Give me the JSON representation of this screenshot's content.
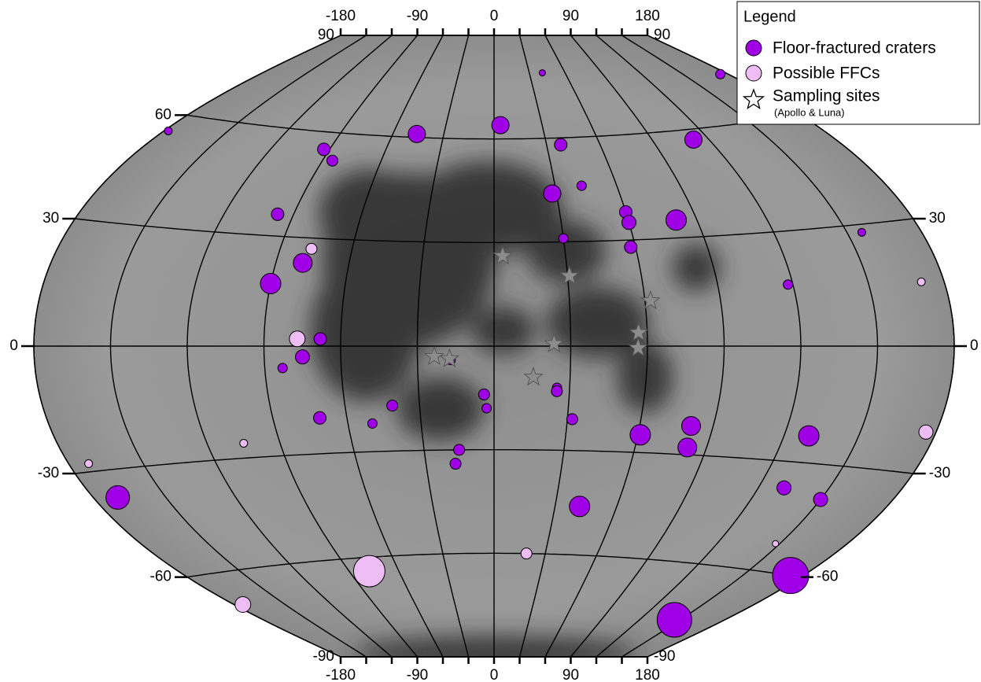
{
  "map": {
    "lon_ticks": [
      -180,
      -150,
      -120,
      -90,
      -60,
      -30,
      0,
      30,
      60,
      90,
      120,
      150,
      180
    ],
    "lon_labels": [
      -180,
      -90,
      0,
      90,
      180
    ],
    "parallels": [
      60,
      30,
      0,
      -30,
      -60
    ],
    "lat_labels_left": [
      90,
      60,
      30,
      0,
      -30,
      -60,
      -90
    ],
    "lat_labels_right": [
      90,
      30,
      0,
      -30,
      -60,
      -90
    ],
    "legend": {
      "title": "Legend",
      "items": [
        {
          "label": "Floor-fractured craters",
          "color": "#a000e6"
        },
        {
          "label": "Possible FFCs",
          "color": "#efbdf5"
        },
        {
          "label": "Sampling sites",
          "note": "(Apollo & Luna)",
          "color": "#8c8c8c"
        }
      ]
    },
    "craters": [
      {
        "lon": 4,
        "lat": 64,
        "diameter_km": 165,
        "type": "ffc"
      },
      {
        "lon": -46,
        "lat": 61,
        "diameter_km": 165,
        "type": "ffc"
      },
      {
        "lon": 38,
        "lat": 58,
        "diameter_km": 120,
        "type": "ffc"
      },
      {
        "lon": 112,
        "lat": 57,
        "diameter_km": 165,
        "type": "ffc"
      },
      {
        "lon": -178,
        "lat": 55,
        "diameter_km": 75,
        "type": "ffc"
      },
      {
        "lon": 28,
        "lat": 44,
        "diameter_km": 165,
        "type": "ffc"
      },
      {
        "lon": 81,
        "lat": 35,
        "diameter_km": 195,
        "type": "ffc"
      },
      {
        "lon": 60,
        "lat": 38,
        "diameter_km": 120,
        "type": "ffc"
      },
      {
        "lon": 60,
        "lat": 35,
        "diameter_km": 135,
        "type": "ffc"
      },
      {
        "lon": 43,
        "lat": 46,
        "diameter_km": 90,
        "type": "ffc"
      },
      {
        "lon": 30,
        "lat": 31,
        "diameter_km": 90,
        "type": "ffc"
      },
      {
        "lon": 58,
        "lat": 28,
        "diameter_km": 120,
        "type": "ffc"
      },
      {
        "lon": -79,
        "lat": 23,
        "diameter_km": 180,
        "type": "ffc"
      },
      {
        "lon": -90,
        "lat": 17,
        "diameter_km": 195,
        "type": "ffc"
      },
      {
        "lon": -97,
        "lat": 36,
        "diameter_km": 120,
        "type": "ffc"
      },
      {
        "lon": -93,
        "lat": 55,
        "diameter_km": 120,
        "type": "ffc"
      },
      {
        "lon": -85,
        "lat": 52,
        "diameter_km": 105,
        "type": "ffc"
      },
      {
        "lon": -68,
        "lat": 2,
        "diameter_km": 120,
        "type": "ffc"
      },
      {
        "lon": -75,
        "lat": -3,
        "diameter_km": 135,
        "type": "ffc"
      },
      {
        "lon": -83,
        "lat": -6,
        "diameter_km": 90,
        "type": "ffc"
      },
      {
        "lon": -71,
        "lat": -20,
        "diameter_km": 120,
        "type": "ffc"
      },
      {
        "lon": -50,
        "lat": -22,
        "diameter_km": 90,
        "type": "ffc"
      },
      {
        "lon": -41,
        "lat": -17,
        "diameter_km": 105,
        "type": "ffc"
      },
      {
        "lon": -4,
        "lat": -14,
        "diameter_km": 105,
        "type": "ffc"
      },
      {
        "lon": -3,
        "lat": -18,
        "diameter_km": 90,
        "type": "ffc"
      },
      {
        "lon": 25,
        "lat": -12,
        "diameter_km": 90,
        "type": "ffc"
      },
      {
        "lon": 32,
        "lat": -21,
        "diameter_km": 105,
        "type": "ffc"
      },
      {
        "lon": 61,
        "lat": -25,
        "diameter_km": 195,
        "type": "ffc"
      },
      {
        "lon": 81,
        "lat": -22,
        "diameter_km": 180,
        "type": "ffc"
      },
      {
        "lon": 82,
        "lat": -28,
        "diameter_km": 180,
        "type": "ffc"
      },
      {
        "lon": 130,
        "lat": -23,
        "diameter_km": 195,
        "type": "ffc"
      },
      {
        "lon": 42,
        "lat": -46,
        "diameter_km": 195,
        "type": "ffc"
      },
      {
        "lon": 131,
        "lat": -37,
        "diameter_km": 135,
        "type": "ffc"
      },
      {
        "lon": 150,
        "lat": -39,
        "diameter_km": 135,
        "type": "ffc"
      },
      {
        "lon": -170,
        "lat": -37,
        "diameter_km": 225,
        "type": "ffc"
      },
      {
        "lon": 146,
        "lat": -77,
        "diameter_km": 330,
        "type": "ffc"
      },
      {
        "lon": 174,
        "lat": -60,
        "diameter_km": 345,
        "type": "ffc"
      },
      {
        "lon": -17,
        "lat": -34,
        "diameter_km": 105,
        "type": "ffc"
      },
      {
        "lon": -15,
        "lat": -30,
        "diameter_km": 105,
        "type": "ffc"
      },
      {
        "lon": 175,
        "lat": 75,
        "diameter_km": 90,
        "type": "ffc"
      },
      {
        "lon": 41,
        "lat": 79,
        "diameter_km": 60,
        "type": "ffc"
      },
      {
        "lon": 156,
        "lat": 28,
        "diameter_km": 75,
        "type": "ffc"
      },
      {
        "lon": 118,
        "lat": 16,
        "diameter_km": 90,
        "type": "ffc"
      },
      {
        "lon": -17,
        "lat": -4,
        "diameter_km": 90,
        "type": "ffc"
      },
      {
        "lon": 25,
        "lat": -13,
        "diameter_km": 105,
        "type": "ffc"
      },
      {
        "lon": -78,
        "lat": -64,
        "diameter_km": 300,
        "type": "possible"
      },
      {
        "lon": -175,
        "lat": -70,
        "diameter_km": 150,
        "type": "possible"
      },
      {
        "lon": 176,
        "lat": -20,
        "diameter_km": 135,
        "type": "possible"
      },
      {
        "lon": -77,
        "lat": 2,
        "diameter_km": 150,
        "type": "possible"
      },
      {
        "lon": -77,
        "lat": 27,
        "diameter_km": 105,
        "type": "possible"
      },
      {
        "lon": 19,
        "lat": -60,
        "diameter_km": 105,
        "type": "possible"
      },
      {
        "lon": 171,
        "lat": 15,
        "diameter_km": 75,
        "type": "possible"
      },
      {
        "lon": -172,
        "lat": -28,
        "diameter_km": 75,
        "type": "possible"
      },
      {
        "lon": 148,
        "lat": -52,
        "diameter_km": 60,
        "type": "possible"
      },
      {
        "lon": -105,
        "lat": -26,
        "diameter_km": 75,
        "type": "possible"
      }
    ],
    "sampling_sites": [
      {
        "lon": 23.47,
        "lat": 0.67
      },
      {
        "lon": -23.42,
        "lat": -3.01
      },
      {
        "lon": -17.47,
        "lat": -3.65
      },
      {
        "lon": 3.63,
        "lat": 26.13
      },
      {
        "lon": 15.5,
        "lat": -8.97
      },
      {
        "lon": 30.77,
        "lat": 20.19
      },
      {
        "lon": 56.36,
        "lat": -0.51
      },
      {
        "lon": 56.62,
        "lat": 3.79
      },
      {
        "lon": 62.21,
        "lat": 12.71
      }
    ]
  }
}
